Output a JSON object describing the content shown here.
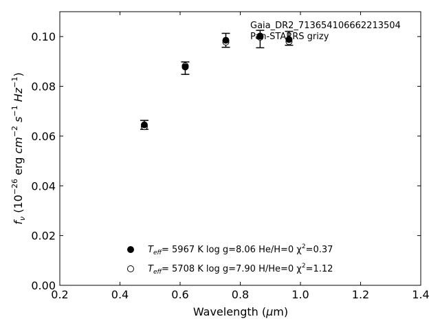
{
  "chart_data": {
    "type": "scatter",
    "xlabel": "Wavelength (μm)",
    "ylabel": "f_ν (10^−26 erg cm^−2 s^−1 Hz^−1)",
    "xlim": [
      0.2,
      1.4
    ],
    "ylim": [
      0.0,
      0.11
    ],
    "xticks": [
      "0.2",
      "0.4",
      "0.6",
      "0.8",
      "1.0",
      "1.2",
      "1.4"
    ],
    "yticks": [
      "0.00",
      "0.02",
      "0.04",
      "0.06",
      "0.08",
      "0.10"
    ],
    "annotation": [
      "Gaia_DR2_713654106662213504",
      "Pan-STARRS grizy"
    ],
    "observed": {
      "x": [
        0.481,
        0.617,
        0.752,
        0.866,
        0.962
      ],
      "y": [
        0.0645,
        0.0873,
        0.0985,
        0.099,
        0.0993
      ],
      "yerr": [
        0.0018,
        0.0025,
        0.0028,
        0.0035,
        0.0028
      ]
    },
    "series": [
      {
        "name": "He/H=0 model",
        "marker": "filled-circle",
        "x": [
          0.481,
          0.617,
          0.752,
          0.866,
          0.962
        ],
        "y": [
          0.0645,
          0.0878,
          0.0985,
          0.1002,
          0.0988
        ],
        "legend_parts": [
          "T",
          "eff",
          "=  5967 K  log g=8.06  He/H=0  χ",
          "2",
          "=0.37"
        ]
      },
      {
        "name": "H/He=0 model",
        "marker": "open-circle",
        "x": [
          0.481,
          0.617,
          0.752,
          0.866,
          0.962
        ],
        "y": [
          0.0638,
          0.0882,
          0.0978,
          0.0998,
          0.098
        ],
        "legend_parts": [
          "T",
          "eff",
          "=  5708 K  log g=7.90  H/He=0  χ",
          "2",
          "=1.12"
        ]
      }
    ],
    "legend_position": "lower-center",
    "grid": false
  }
}
